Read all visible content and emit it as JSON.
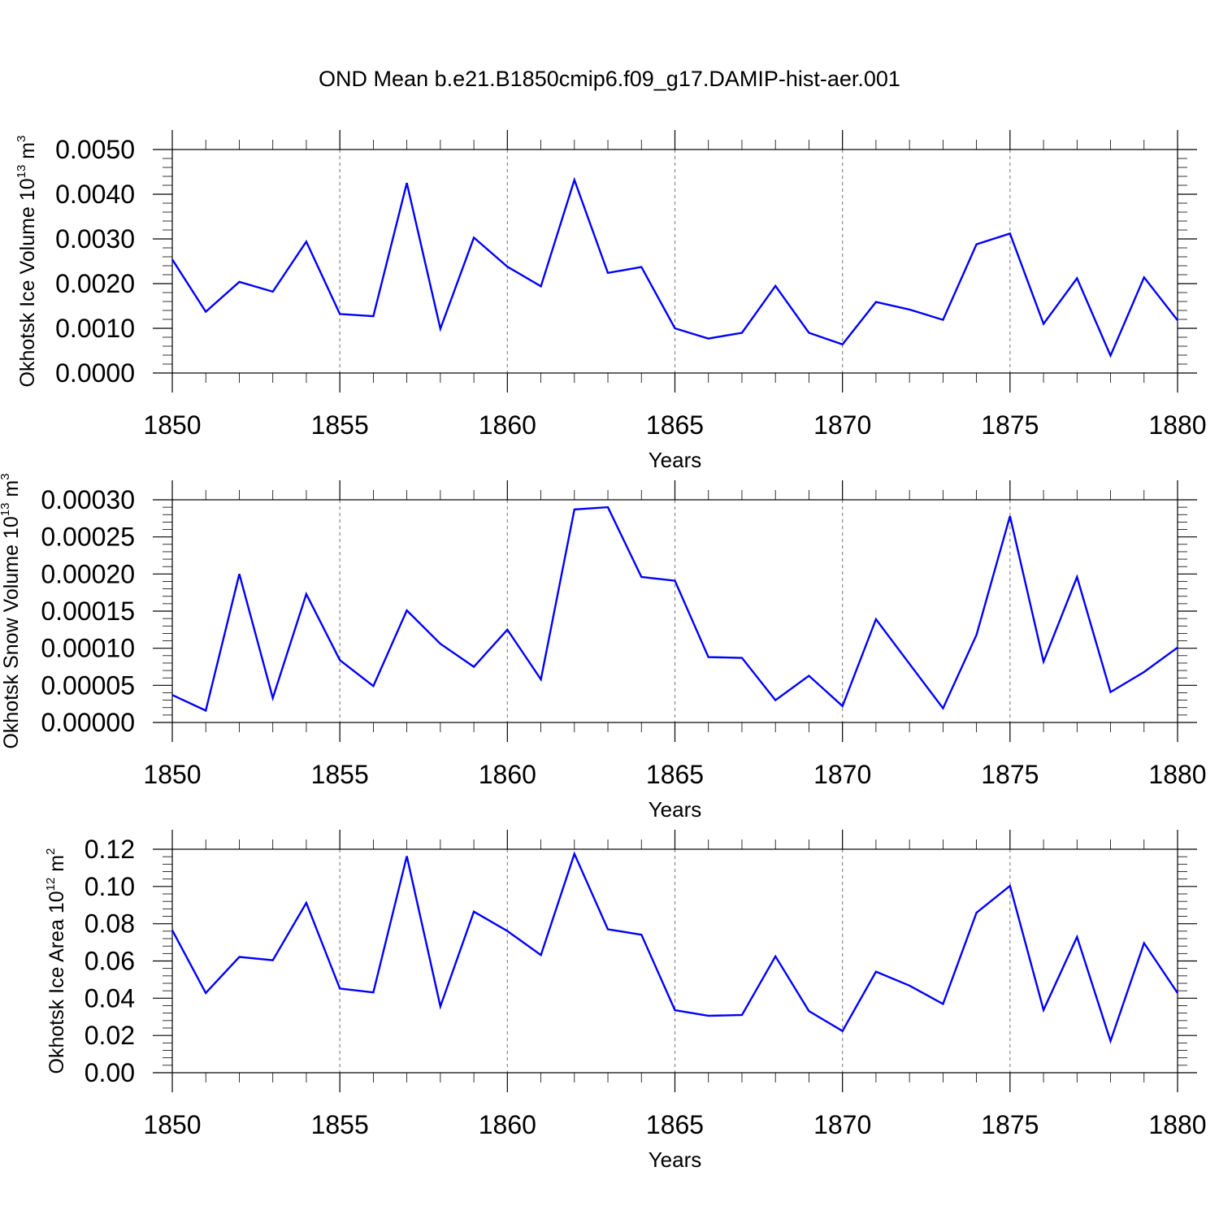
{
  "title": "OND Mean b.e21.B1850cmip6.f09_g17.DAMIP-hist-aer.001",
  "colors": {
    "line": "#0000ff",
    "axis": "#000000",
    "grid": "#888888"
  },
  "chart_data": [
    {
      "type": "line",
      "title": "OND Mean b.e21.B1850cmip6.f09_g17.DAMIP-hist-aer.001",
      "ylabel": {
        "text": "Okhotsk Ice Volume 10",
        "exp": "13",
        "unit": " m",
        "unit_exp": "3"
      },
      "xlabel": "Years",
      "xlim": [
        1850,
        1880
      ],
      "ylim": [
        0,
        0.005
      ],
      "xticks": [
        "1850",
        "1855",
        "1860",
        "1865",
        "1870",
        "1875",
        "1880"
      ],
      "yticks": [
        "0.0000",
        "0.0010",
        "0.0020",
        "0.0030",
        "0.0040",
        "0.0050"
      ],
      "grid": "vertical dashed at major x ticks",
      "series": [
        {
          "name": "Okhotsk Ice Volume",
          "x": [
            1850,
            1851,
            1852,
            1853,
            1854,
            1855,
            1856,
            1857,
            1858,
            1859,
            1860,
            1861,
            1862,
            1863,
            1864,
            1865,
            1866,
            1867,
            1868,
            1869,
            1870,
            1871,
            1872,
            1873,
            1874,
            1875,
            1876,
            1877,
            1878,
            1879,
            1880
          ],
          "values": [
            0.00254,
            0.00137,
            0.00204,
            0.00182,
            0.00294,
            0.00132,
            0.00127,
            0.00425,
            0.00099,
            0.00303,
            0.00238,
            0.00194,
            0.00432,
            0.00224,
            0.00237,
            0.001,
            0.00077,
            0.0009,
            0.00195,
            0.0009,
            0.00064,
            0.00159,
            0.00142,
            0.00119,
            0.00288,
            0.00312,
            0.0011,
            0.00212,
            0.00039,
            0.00214,
            0.00118
          ]
        }
      ]
    },
    {
      "type": "line",
      "ylabel": {
        "text": "Okhotsk Snow Volume 10",
        "exp": "13",
        "unit": " m",
        "unit_exp": "3"
      },
      "xlabel": "Years",
      "xlim": [
        1850,
        1880
      ],
      "ylim": [
        0,
        0.0003
      ],
      "xticks": [
        "1850",
        "1855",
        "1860",
        "1865",
        "1870",
        "1875",
        "1880"
      ],
      "yticks": [
        "0.00000",
        "0.00005",
        "0.00010",
        "0.00015",
        "0.00020",
        "0.00025",
        "0.00030"
      ],
      "grid": "vertical dashed at major x ticks",
      "series": [
        {
          "name": "Okhotsk Snow Volume",
          "x": [
            1850,
            1851,
            1852,
            1853,
            1854,
            1855,
            1856,
            1857,
            1858,
            1859,
            1860,
            1861,
            1862,
            1863,
            1864,
            1865,
            1866,
            1867,
            1868,
            1869,
            1870,
            1871,
            1872,
            1873,
            1874,
            1875,
            1876,
            1877,
            1878,
            1879,
            1880
          ],
          "values": [
            3.7e-05,
            1.6e-05,
            0.0002,
            3.3e-05,
            0.000173,
            8.4e-05,
            4.9e-05,
            0.000151,
            0.000106,
            7.5e-05,
            0.000125,
            5.8e-05,
            0.000287,
            0.00029,
            0.000196,
            0.000191,
            8.8e-05,
            8.7e-05,
            3e-05,
            6.3e-05,
            2.2e-05,
            0.000139,
            7.9e-05,
            1.9e-05,
            0.000118,
            0.000278,
            8.2e-05,
            0.000196,
            4.1e-05,
            6.8e-05,
            0.000101
          ]
        }
      ]
    },
    {
      "type": "line",
      "ylabel": {
        "text": "Okhotsk Ice Area 10",
        "exp": "12",
        "unit": " m",
        "unit_exp": "2"
      },
      "xlabel": "Years",
      "xlim": [
        1850,
        1880
      ],
      "ylim": [
        0,
        0.12
      ],
      "xticks": [
        "1850",
        "1855",
        "1860",
        "1865",
        "1870",
        "1875",
        "1880"
      ],
      "yticks": [
        "0.00",
        "0.02",
        "0.04",
        "0.06",
        "0.08",
        "0.10",
        "0.12"
      ],
      "grid": "vertical dashed at major x ticks",
      "series": [
        {
          "name": "Okhotsk Ice Area",
          "x": [
            1850,
            1851,
            1852,
            1853,
            1854,
            1855,
            1856,
            1857,
            1858,
            1859,
            1860,
            1861,
            1862,
            1863,
            1864,
            1865,
            1866,
            1867,
            1868,
            1869,
            1870,
            1871,
            1872,
            1873,
            1874,
            1875,
            1876,
            1877,
            1878,
            1879,
            1880
          ],
          "values": [
            0.0765,
            0.0428,
            0.0622,
            0.0604,
            0.0912,
            0.0452,
            0.0431,
            0.1163,
            0.0356,
            0.0865,
            0.0761,
            0.0632,
            0.1175,
            0.077,
            0.0741,
            0.0336,
            0.0306,
            0.031,
            0.0625,
            0.0331,
            0.0224,
            0.0543,
            0.0468,
            0.0369,
            0.0859,
            0.1003,
            0.0337,
            0.0729,
            0.017,
            0.0696,
            0.0428
          ]
        }
      ]
    }
  ]
}
